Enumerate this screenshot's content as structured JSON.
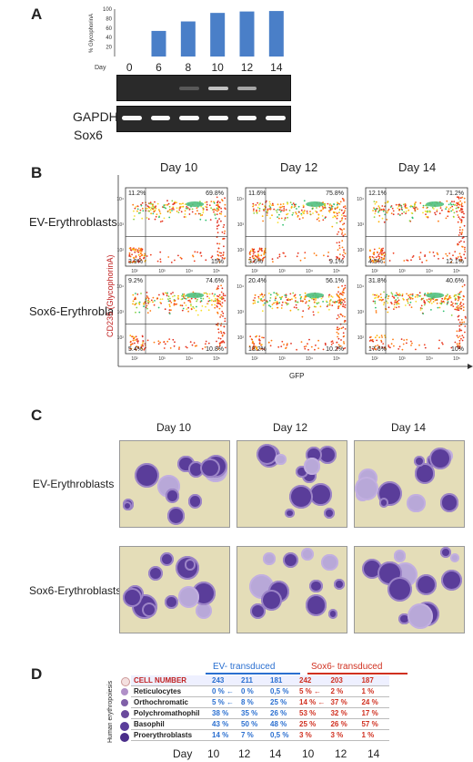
{
  "panels": {
    "A": {
      "letter": "A",
      "chart_data": {
        "type": "bar",
        "categories": [
          "0",
          "6",
          "8",
          "10",
          "12",
          "14"
        ],
        "values": [
          0,
          54,
          74,
          92,
          95,
          96
        ],
        "ylabel": "% GlycophorinA",
        "xlabel": "Day",
        "ylim": [
          0,
          100
        ],
        "yticks": [
          20,
          40,
          60,
          80,
          100
        ],
        "bar_color": "#4a7fc8"
      },
      "gel_sox6_label": "Sox6",
      "gel_gapdh_label": "GAPDH",
      "sox6_band_levels": [
        0,
        0,
        0.15,
        0.7,
        0.55,
        0
      ],
      "gapdh_band_levels": [
        1,
        1,
        1,
        1,
        1,
        1
      ]
    },
    "B": {
      "letter": "B",
      "days": [
        "Day 10",
        "Day 12",
        "Day 14"
      ],
      "row_labels": [
        "EV-Erythroblasts",
        "Sox6-Erythroblasts"
      ],
      "y_axis_label": "CD235 (GlycophorinA)",
      "x_axis_label": "GFP",
      "plots": [
        {
          "q": [
            "11.2%",
            "69.8%",
            "3.9%",
            "15%"
          ]
        },
        {
          "q": [
            "11.6%",
            "75.8%",
            "3.6%",
            "9.1%"
          ]
        },
        {
          "q": [
            "12.1%",
            "71.2%",
            "4.5%",
            "12.1%"
          ]
        },
        {
          "q": [
            "9.2%",
            "74.6%",
            "5.4%",
            "10.8%"
          ]
        },
        {
          "q": [
            "20.4%",
            "56.1%",
            "13.2%",
            "10.2%"
          ]
        },
        {
          "q": [
            "31.8%",
            "40.6%",
            "17.6%",
            "10%"
          ]
        }
      ],
      "y_ticks_a": [
        "10⁴",
        "10³",
        "10²"
      ],
      "x_ticks_a": [
        "10²",
        "10³",
        "10⁴",
        "10⁵"
      ]
    },
    "C": {
      "letter": "C",
      "days": [
        "Day 10",
        "Day 12",
        "Day 14"
      ],
      "row_labels": [
        "EV-Erythroblasts",
        "Sox6-Erythroblasts"
      ],
      "background_color": "#e4ddb8",
      "cell_color": "#5a3d9a"
    },
    "D": {
      "letter": "D",
      "side_label": "Human erythropoiesis",
      "group_labels": [
        "EV- transduced",
        "Sox6- transduced"
      ],
      "ev_color": "#2a6fd0",
      "sox_color": "#d03020",
      "rows": [
        {
          "name": "CELL NUMBER",
          "ev": [
            "243",
            "211",
            "181"
          ],
          "sox": [
            "242",
            "203",
            "187"
          ]
        },
        {
          "name": "Reticulocytes",
          "ev": [
            "0 % ←",
            "0 %",
            "0,5 %"
          ],
          "sox": [
            "5 % ←",
            "2 %",
            "1 %"
          ]
        },
        {
          "name": "Orthochromatic",
          "ev": [
            "5 % ←",
            "8 %",
            "25 %"
          ],
          "sox": [
            "14 % ←",
            "37 %",
            "24 %"
          ]
        },
        {
          "name": "Polychromathophil",
          "ev": [
            "38 %",
            "35 %",
            "26 %"
          ],
          "sox": [
            "53 %",
            "32 %",
            "17 %"
          ]
        },
        {
          "name": "Basophil",
          "ev": [
            "43 %",
            "50 %",
            "48 %"
          ],
          "sox": [
            "25 %",
            "26 %",
            "57 %"
          ]
        },
        {
          "name": "Proerythroblasts",
          "ev": [
            "14 %",
            "7 %",
            "0,5 %"
          ],
          "sox": [
            "3 %",
            "3 %",
            "1 %"
          ]
        }
      ],
      "day_label": "Day",
      "days": [
        "10",
        "12",
        "14",
        "10",
        "12",
        "14"
      ]
    }
  }
}
